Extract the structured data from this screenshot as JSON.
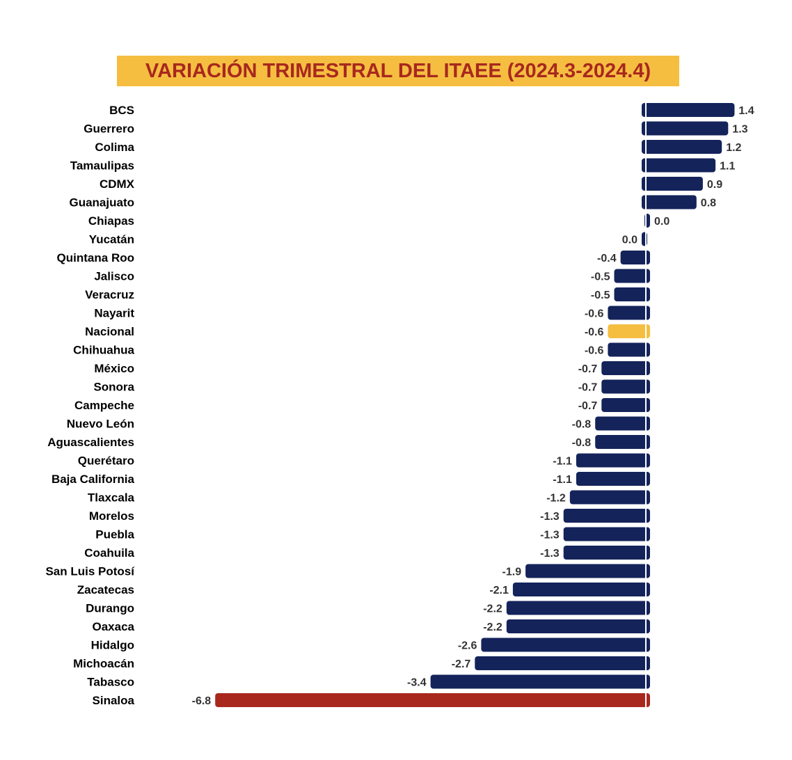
{
  "chart_data": {
    "type": "bar",
    "orientation": "horizontal",
    "title": "VARIACIÓN TRIMESTRAL DEL ITAEE (2024.3-2024.4)",
    "xlabel": "",
    "ylabel": "",
    "grid": false,
    "legend": "none",
    "categories": [
      "BCS",
      "Guerrero",
      "Colima",
      "Tamaulipas",
      "CDMX",
      "Guanajuato",
      "Chiapas",
      "Yucatán",
      "Quintana Roo",
      "Jalisco",
      "Veracruz",
      "Nayarit",
      "Nacional",
      "Chihuahua",
      "México",
      "Sonora",
      "Campeche",
      "Nuevo León",
      "Aguascalientes",
      "Querétaro",
      "Baja California",
      "Tlaxcala",
      "Morelos",
      "Puebla",
      "Coahuila",
      "San Luis Potosí",
      "Zacatecas",
      "Durango",
      "Oaxaca",
      "Hidalgo",
      "Michoacán",
      "Tabasco",
      "Sinaloa"
    ],
    "values": [
      1.4,
      1.3,
      1.2,
      1.1,
      0.9,
      0.8,
      0.0,
      0.0,
      -0.4,
      -0.5,
      -0.5,
      -0.6,
      -0.6,
      -0.6,
      -0.7,
      -0.7,
      -0.7,
      -0.8,
      -0.8,
      -1.1,
      -1.1,
      -1.2,
      -1.3,
      -1.3,
      -1.3,
      -1.9,
      -2.1,
      -2.2,
      -2.2,
      -2.6,
      -2.7,
      -3.4,
      -6.8
    ],
    "value_labels": [
      "1.4",
      "1.3",
      "1.2",
      "1.1",
      "0.9",
      "0.8",
      "0.0",
      "0.0",
      "-0.4",
      "-0.5",
      "-0.5",
      "-0.6",
      "-0.6",
      "-0.6",
      "-0.7",
      "-0.7",
      "-0.7",
      "-0.8",
      "-0.8",
      "-1.1",
      "-1.1",
      "-1.2",
      "-1.3",
      "-1.3",
      "-1.3",
      "-1.9",
      "-2.1",
      "-2.2",
      "-2.2",
      "-2.6",
      "-2.7",
      "-3.4",
      "-6.8"
    ],
    "highlight": {
      "Nacional": "#f5be41",
      "Sinaloa": "#a8281e"
    },
    "colors": {
      "default": "#14235a",
      "title_bg": "#f5be41",
      "title_text": "#a8281e",
      "label_text": "#000000",
      "value_text": "#333333"
    }
  }
}
